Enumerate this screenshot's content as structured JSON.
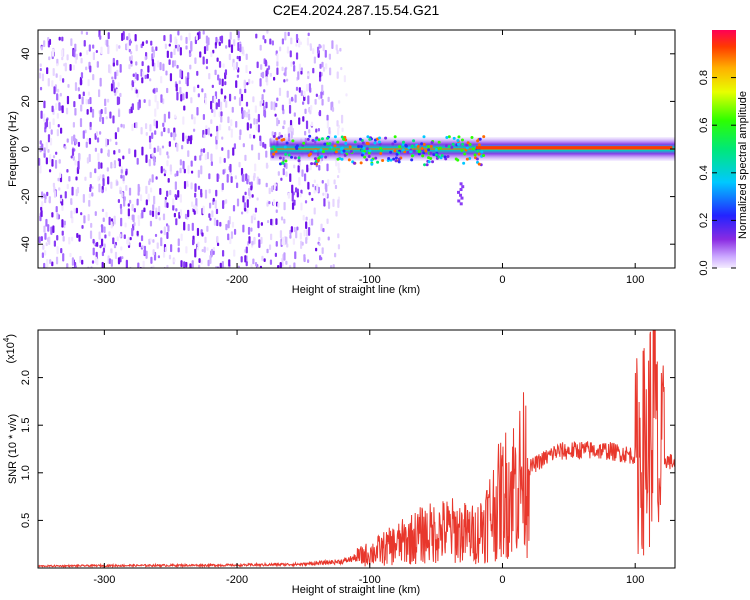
{
  "title": "C2E4.2024.287.15.54.G21",
  "chart_data": [
    {
      "type": "heatmap",
      "xlabel": "Height of straight line (km)",
      "ylabel": "Frequency (Hz)",
      "xlim": [
        -350,
        130
      ],
      "ylim": [
        -50,
        50
      ],
      "xticks": [
        -300,
        -200,
        -100,
        0,
        100
      ],
      "xtick_labels": [
        "-300",
        "-200",
        "-100",
        "0",
        "100"
      ],
      "yticks": [
        -40,
        -20,
        0,
        20,
        40
      ],
      "ytick_labels": [
        "-40",
        "-20",
        "0",
        "20",
        "40"
      ],
      "colorbar": {
        "label": "Normalized spectral amplitude",
        "range": [
          0,
          1
        ],
        "ticks": [
          0.0,
          0.2,
          0.4,
          0.6,
          0.8
        ],
        "tick_labels": [
          "0.0",
          "0.2",
          "0.4",
          "0.6",
          "0.8"
        ]
      },
      "features": [
        {
          "x_range": [
            -350,
            -120
          ],
          "description_level": 0.15
        },
        {
          "x_range": [
            -175,
            130
          ],
          "frequency_center": 0,
          "level": "high"
        }
      ]
    },
    {
      "type": "line",
      "xlabel": "Height of straight line (km)",
      "ylabel": "SNR (10 * v/v)",
      "y_multiplier_label": "(x10",
      "y_multiplier_exp": "4",
      "xlim": [
        -350,
        130
      ],
      "ylim": [
        0,
        25000
      ],
      "xticks": [
        -300,
        -200,
        -100,
        0,
        100
      ],
      "xtick_labels": [
        "-300",
        "-200",
        "-100",
        "0",
        "100"
      ],
      "yticks": [
        5000,
        10000,
        15000,
        20000
      ],
      "ytick_labels": [
        "0.5",
        "1.0",
        "1.5",
        "2.0"
      ],
      "color": "#e8372c",
      "x": [
        -350,
        -300,
        -200,
        -150,
        -120,
        -100,
        -80,
        -60,
        -40,
        -20,
        0,
        20,
        40,
        60,
        80,
        100,
        110,
        115,
        118,
        120,
        130
      ],
      "y": [
        200,
        250,
        300,
        400,
        700,
        1500,
        2500,
        3500,
        4000,
        3500,
        7500,
        10500,
        12200,
        12400,
        12300,
        11800,
        13000,
        18000,
        8000,
        11500,
        11000
      ]
    }
  ]
}
